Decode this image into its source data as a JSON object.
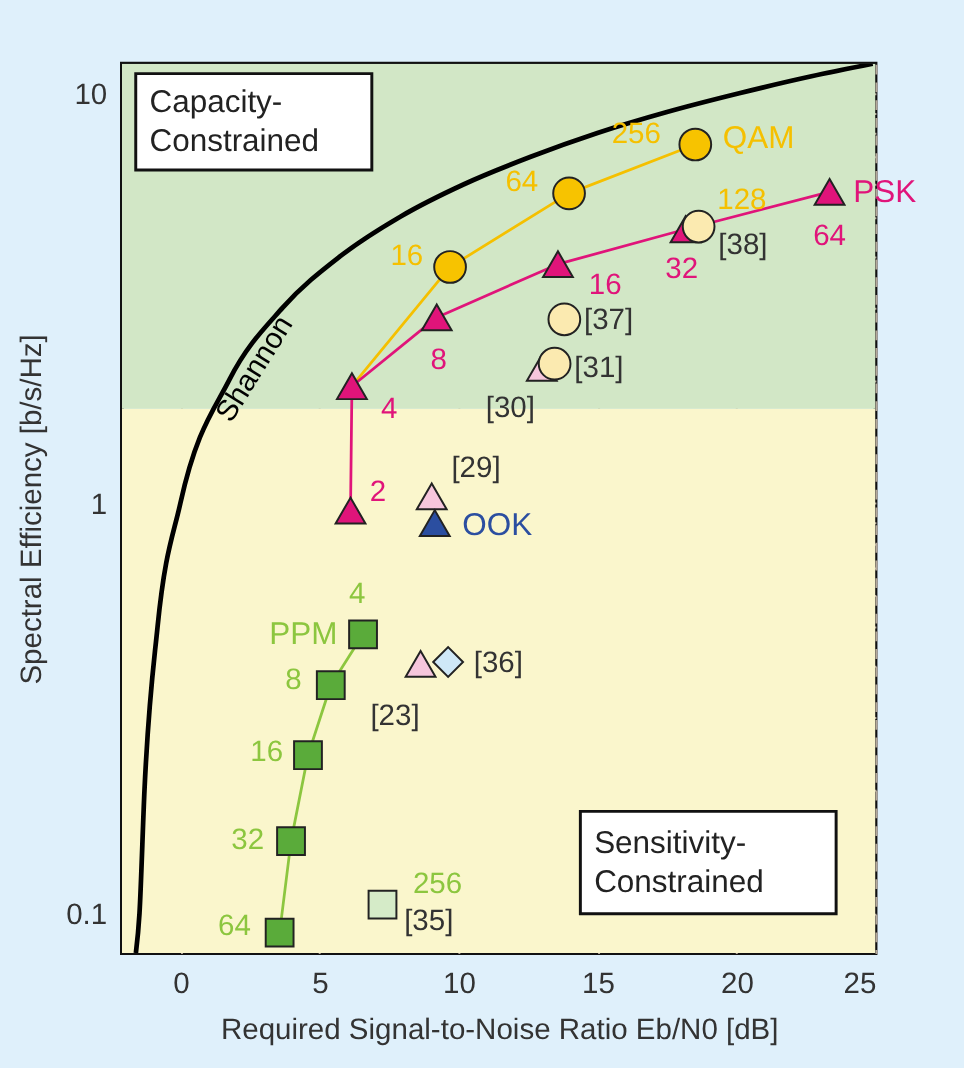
{
  "chart_data": {
    "type": "scatter",
    "xlabel": "Required Signal-to-Noise Ratio Eb/N0 [dB]",
    "ylabel": "Spectral Efficiency [b/s/Hz]",
    "xlim": [
      -2.1,
      25
    ],
    "ylim": [
      0.08,
      11.8
    ],
    "xticks": [
      0,
      5,
      10,
      15,
      20,
      25
    ],
    "yticks": [
      0.1,
      {
        "value": 0.2,
        "label": null
      },
      {
        "value": 0.3,
        "label": null
      },
      {
        "value": 0.4,
        "label": null
      },
      {
        "value": 0.5,
        "label": null
      },
      {
        "value": 0.6,
        "label": null
      },
      {
        "value": 0.7,
        "label": null
      },
      {
        "value": 0.8,
        "label": null
      },
      {
        "value": 0.9,
        "label": null
      },
      1,
      {
        "value": 2,
        "label": null
      },
      {
        "value": 3,
        "label": null
      },
      {
        "value": 4,
        "label": null
      },
      {
        "value": 5,
        "label": null
      },
      {
        "value": 6,
        "label": null
      },
      {
        "value": 7,
        "label": null
      },
      {
        "value": 8,
        "label": null
      },
      {
        "value": 9,
        "label": null
      },
      10
    ],
    "log": "y",
    "grid": true,
    "bands": [
      {
        "axis": "y",
        "from": 0.08,
        "to": 1.7,
        "color": "#faf6cc"
      },
      {
        "axis": "y",
        "from": 1.7,
        "to": 11.8,
        "color": "#d2e7c6"
      }
    ],
    "annotations": [
      {
        "text": "[29]",
        "x": 9.04,
        "y": 1.04
      },
      {
        "text": "[23]",
        "x": 8.64,
        "y": 0.406
      },
      {
        "text": "[30]",
        "x": 13.0,
        "y": 2.14
      },
      {
        "text": "[31]",
        "x": 13.46,
        "y": 2.19
      },
      {
        "text": "[37]",
        "x": 13.81,
        "y": 2.81
      },
      {
        "text": "[38]",
        "x": 18.64,
        "y": 4.73
      },
      {
        "text": "[36]",
        "x": 9.63,
        "y": 0.41
      },
      {
        "text": "[35]",
        "x": 7.27,
        "y": 0.105
      },
      {
        "text": "16",
        "x": 9.7,
        "y": 3.77
      },
      {
        "text": "64",
        "x": 13.98,
        "y": 5.7
      },
      {
        "text": "256",
        "x": 18.52,
        "y": 7.5
      },
      {
        "text": "128",
        "x": 18.64,
        "y": 4.73
      },
      {
        "text": "2",
        "x": 6.12,
        "y": 0.96
      },
      {
        "text": "4",
        "x": 6.17,
        "y": 1.93
      },
      {
        "text": "8",
        "x": 9.22,
        "y": 2.84
      },
      {
        "text": "16",
        "x": 13.58,
        "y": 3.83
      },
      {
        "text": "32",
        "x": 18.17,
        "y": 4.66
      },
      {
        "text": "64",
        "x": 23.35,
        "y": 5.75
      },
      {
        "text": "4",
        "x": 6.57,
        "y": 0.479
      },
      {
        "text": "8",
        "x": 5.41,
        "y": 0.36
      },
      {
        "text": "16",
        "x": 4.59,
        "y": 0.243
      },
      {
        "text": "32",
        "x": 3.98,
        "y": 0.15
      },
      {
        "text": "64",
        "x": 3.57,
        "y": 0.0897
      },
      {
        "text": "256",
        "x": 7.27,
        "y": 0.105
      },
      "Capacity-\nConstrained",
      "Sensitivity-\nConstrained"
    ],
    "series": [
      {
        "type": "line",
        "name": "Shannon",
        "color": "#000000",
        "marker": "none",
        "x": [
          -1.6,
          -1.47,
          -1.29,
          -0.82,
          0,
          1.76,
          3.68,
          5.74,
          7.91,
          10.2,
          12.6,
          15.0,
          17.5,
          20.1,
          22.7,
          24.9
        ],
        "values": [
          0.08,
          0.1,
          0.2,
          0.5,
          1,
          2,
          3,
          4,
          5,
          6,
          7,
          8,
          9,
          10,
          11,
          11.8
        ]
      },
      {
        "type": "line",
        "name": "QAM",
        "color": "#f5c000",
        "marker": "circle",
        "x": [
          6.17,
          9.7,
          13.98,
          18.52
        ],
        "values": [
          1.93,
          3.77,
          5.7,
          7.5
        ],
        "colors": [
          null,
          "#f7c300",
          "#f7c300",
          "#f7c300"
        ]
      },
      {
        "type": "line",
        "name": "PSK",
        "color": "#e0147a",
        "marker": "triangle",
        "x": [
          6.12,
          6.17,
          9.22,
          13.58,
          18.17,
          23.35
        ],
        "values": [
          0.96,
          1.93,
          2.84,
          3.83,
          4.66,
          5.75
        ]
      },
      {
        "type": "line",
        "name": "PPM",
        "color": "#8cc63f",
        "marker": "square",
        "x": [
          6.57,
          5.41,
          4.59,
          3.98,
          3.57
        ],
        "values": [
          0.479,
          0.36,
          0.243,
          0.15,
          0.0897
        ],
        "colors": [
          "#5aab3a",
          "#5aab3a",
          "#5aab3a",
          "#5aab3a",
          "#5aab3a"
        ]
      },
      {
        "color": "#f6c6dc",
        "marker": "triangle",
        "x": [
          9.04,
          8.64,
          13.0
        ],
        "values": [
          1.04,
          0.406,
          2.14
        ]
      },
      {
        "name": "OOK",
        "color": "#2b4ea0",
        "marker": "triangle",
        "x": [
          9.15
        ],
        "values": [
          0.895
        ]
      },
      {
        "color": "#fbeab0",
        "marker": "circle",
        "x": [
          13.46,
          13.81,
          18.64
        ],
        "values": [
          2.19,
          2.81,
          4.73
        ]
      },
      {
        "color": "#cfe8f7",
        "marker": "diamond",
        "x": [
          9.63
        ],
        "values": [
          0.41
        ]
      },
      {
        "color": "#d5ebc8",
        "marker": "square",
        "x": [
          7.27
        ],
        "values": [
          0.105
        ]
      }
    ]
  }
}
